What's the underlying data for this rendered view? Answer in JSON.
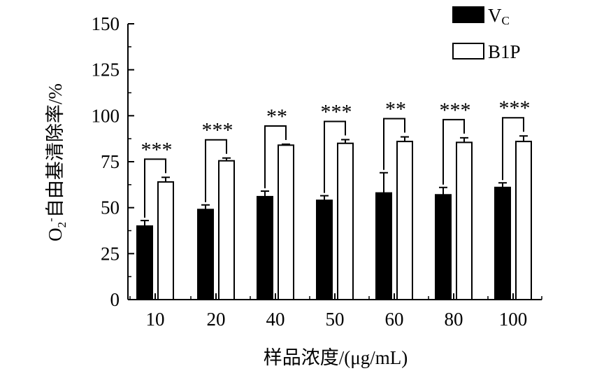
{
  "chart_data": {
    "type": "bar",
    "categories": [
      "10",
      "20",
      "40",
      "50",
      "60",
      "80",
      "100"
    ],
    "xlabel": "样品浓度/(μg/mL)",
    "ylabel": "O₂⁻自由基清除率/%",
    "ylabel_parts": {
      "o": "O",
      "sub": "2",
      "sup": "-",
      "rest": "自由基清除率/%"
    },
    "ylim": [
      0,
      150
    ],
    "yticks": [
      0,
      25,
      50,
      75,
      100,
      125,
      150
    ],
    "series": [
      {
        "name": "Vc",
        "name_main": "V",
        "name_sub": "C",
        "color": "#000000",
        "values": [
          40,
          49,
          56,
          54,
          58,
          57,
          61
        ],
        "errors": [
          3,
          2.5,
          3,
          2.5,
          11,
          4,
          2.5
        ]
      },
      {
        "name": "B1P",
        "name_main": "B1P",
        "name_sub": "",
        "color": "#ffffff",
        "values": [
          64,
          75.5,
          84,
          85,
          86,
          85.5,
          86
        ],
        "errors": [
          2.5,
          1.5,
          0.5,
          2,
          2.5,
          2.5,
          3
        ]
      }
    ],
    "significance": [
      "***",
      "***",
      "**",
      "***",
      "**",
      "***",
      "***"
    ],
    "legend_position": "top-right",
    "grid": false
  }
}
